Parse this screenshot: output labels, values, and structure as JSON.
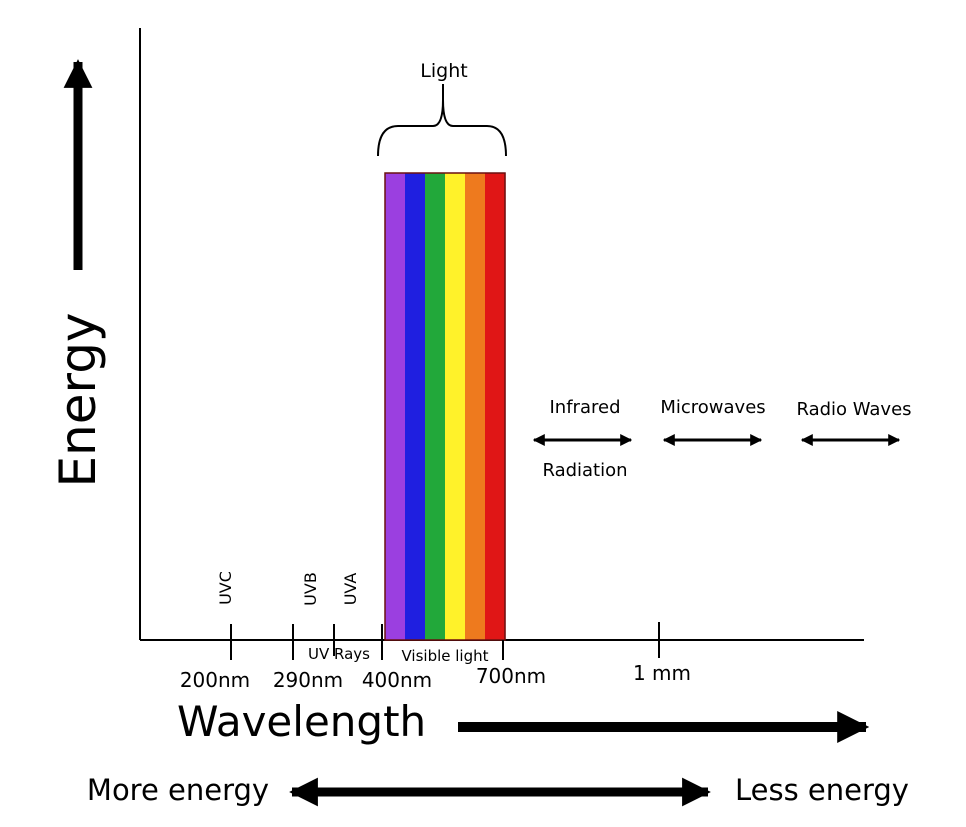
{
  "axes": {
    "y_label": "Energy",
    "x_label": "Wavelength"
  },
  "light_label": "Light",
  "visible_colors": [
    "#9b3fe0",
    "#1f1fe0",
    "#22a83a",
    "#fff22a",
    "#ee7a1e",
    "#e01616"
  ],
  "uv_bands": [
    "UVC",
    "UVB",
    "UVA"
  ],
  "region_labels": {
    "uv_rays": "UV Rays",
    "visible_light": "Visible light"
  },
  "ticks": [
    "200nm",
    "290nm",
    "400nm",
    "700nm",
    "1 mm"
  ],
  "long_waves": [
    {
      "line1": "Infrared",
      "line2": "Radiation"
    },
    {
      "line1": "Microwaves",
      "line2": ""
    },
    {
      "line1": "Radio Waves",
      "line2": ""
    }
  ],
  "energy_scale": {
    "left": "More energy",
    "right": "Less energy"
  }
}
